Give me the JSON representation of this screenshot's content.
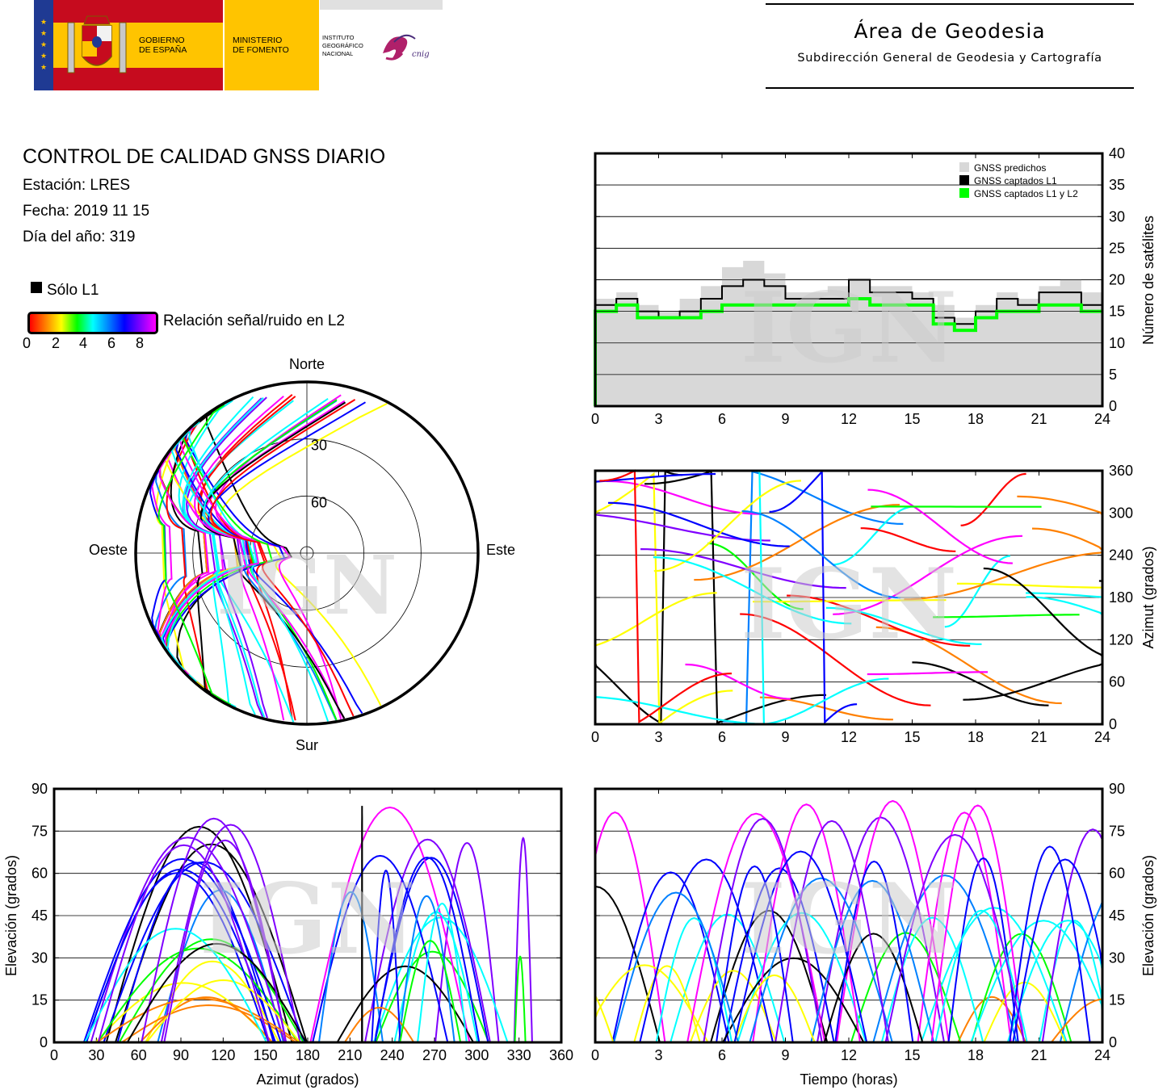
{
  "header": {
    "gov_line1": "GOBIERNO",
    "gov_line2": "DE ESPAÑA",
    "min_line1": "MINISTERIO",
    "min_line2": "DE FOMENTO",
    "ign_line1": "INSTITUTO",
    "ign_line2": "GEOGRÁFICO",
    "ign_line3": "NACIONAL",
    "cnig": "cnig",
    "area_title": "Área de Geodesia",
    "area_subtitle": "Subdirección General de Geodesia y Cartografía"
  },
  "colors": {
    "flag_red": "#c60b1e",
    "flag_yellow": "#ffc400",
    "eu_blue": "#1f3a93",
    "grey_fill": "#d8d8d8",
    "l1_black": "#000000",
    "l1l2_green": "#00ff00",
    "cnig_magenta": "#b0206a"
  },
  "info": {
    "title": "CONTROL DE CALIDAD GNSS DIARIO",
    "station": "Estación: LRES",
    "date": "Fecha: 2019 11 15",
    "doy": "Día del año: 319"
  },
  "legend": {
    "solo_l1": "Sólo L1",
    "snr_label": "Relación señal/ruido en L2",
    "snr_ticks": [
      "0",
      "2",
      "4",
      "6",
      "8"
    ]
  },
  "watermark": "IGN",
  "chart_data": [
    {
      "type": "area",
      "id": "satellite-count",
      "xlabel": "",
      "ylabel": "Número de satélites",
      "xlim": [
        0,
        24
      ],
      "ylim": [
        0,
        40
      ],
      "xticks": [
        "0",
        "3",
        "6",
        "9",
        "12",
        "15",
        "18",
        "21",
        "24"
      ],
      "yticks": [
        "0",
        "5",
        "10",
        "15",
        "20",
        "25",
        "30",
        "35",
        "40"
      ],
      "legend_position": "top-right",
      "grid": "horizontal",
      "series": [
        {
          "name": "GNSS predichos",
          "color": "#d8d8d8",
          "x": [
            0,
            1,
            2,
            3,
            4,
            5,
            6,
            7,
            8,
            9,
            10,
            11,
            12,
            13,
            14,
            15,
            16,
            17,
            18,
            19,
            20,
            21,
            22,
            23,
            24
          ],
          "values": [
            17,
            18,
            16,
            15,
            17,
            19,
            22,
            23,
            21,
            18,
            18,
            19,
            20,
            19,
            19,
            18,
            16,
            14,
            16,
            18,
            17,
            19,
            20,
            18,
            17
          ]
        },
        {
          "name": "GNSS captados L1",
          "color": "#000000",
          "x": [
            0,
            1,
            2,
            3,
            4,
            5,
            6,
            7,
            8,
            9,
            10,
            11,
            12,
            13,
            14,
            15,
            16,
            17,
            18,
            19,
            20,
            21,
            22,
            23,
            24
          ],
          "values": [
            16,
            17,
            15,
            14,
            15,
            17,
            19,
            20,
            19,
            17,
            17,
            17,
            20,
            18,
            18,
            17,
            14,
            13,
            15,
            17,
            16,
            18,
            18,
            16,
            16
          ]
        },
        {
          "name": "GNSS captados L1 y L2",
          "color": "#00ff00",
          "x": [
            0,
            1,
            2,
            3,
            4,
            5,
            6,
            7,
            8,
            9,
            10,
            11,
            12,
            13,
            14,
            15,
            16,
            17,
            18,
            19,
            20,
            21,
            22,
            23,
            24
          ],
          "values": [
            15,
            16,
            14,
            14,
            14,
            15,
            16,
            16,
            16,
            16,
            16,
            16,
            17,
            16,
            16,
            16,
            13,
            12,
            14,
            15,
            15,
            16,
            16,
            15,
            15
          ]
        }
      ]
    },
    {
      "type": "scatter",
      "id": "azimuth-vs-time",
      "xlabel": "",
      "ylabel": "Azimut (grados)",
      "xlim": [
        0,
        24
      ],
      "ylim": [
        0,
        360
      ],
      "xticks": [
        "0",
        "3",
        "6",
        "9",
        "12",
        "15",
        "18",
        "21",
        "24"
      ],
      "yticks": [
        "0",
        "60",
        "120",
        "180",
        "240",
        "300",
        "360"
      ],
      "grid": "horizontal"
    },
    {
      "type": "scatter",
      "id": "sky-plot",
      "xlabel": "",
      "ylabel": "",
      "rings": [
        "30",
        "60"
      ],
      "directions": {
        "north": "Norte",
        "south": "Sur",
        "east": "Este",
        "west": "Oeste"
      }
    },
    {
      "type": "scatter",
      "id": "elevation-vs-azimuth",
      "xlabel": "Azimut (grados)",
      "ylabel": "Elevación (grados)",
      "xlim": [
        0,
        360
      ],
      "ylim": [
        0,
        90
      ],
      "xticks": [
        "0",
        "30",
        "60",
        "90",
        "120",
        "150",
        "180",
        "210",
        "240",
        "270",
        "300",
        "330",
        "360"
      ],
      "yticks": [
        "0",
        "15",
        "30",
        "45",
        "60",
        "75",
        "90"
      ],
      "grid": "horizontal"
    },
    {
      "type": "scatter",
      "id": "elevation-vs-time",
      "xlabel": "Tiempo (horas)",
      "ylabel": "Elevación (grados)",
      "xlim": [
        0,
        24
      ],
      "ylim": [
        0,
        90
      ],
      "xticks": [
        "0",
        "3",
        "6",
        "9",
        "12",
        "15",
        "18",
        "21",
        "24"
      ],
      "yticks": [
        "0",
        "15",
        "30",
        "45",
        "60",
        "75",
        "90"
      ],
      "grid": "horizontal"
    }
  ]
}
